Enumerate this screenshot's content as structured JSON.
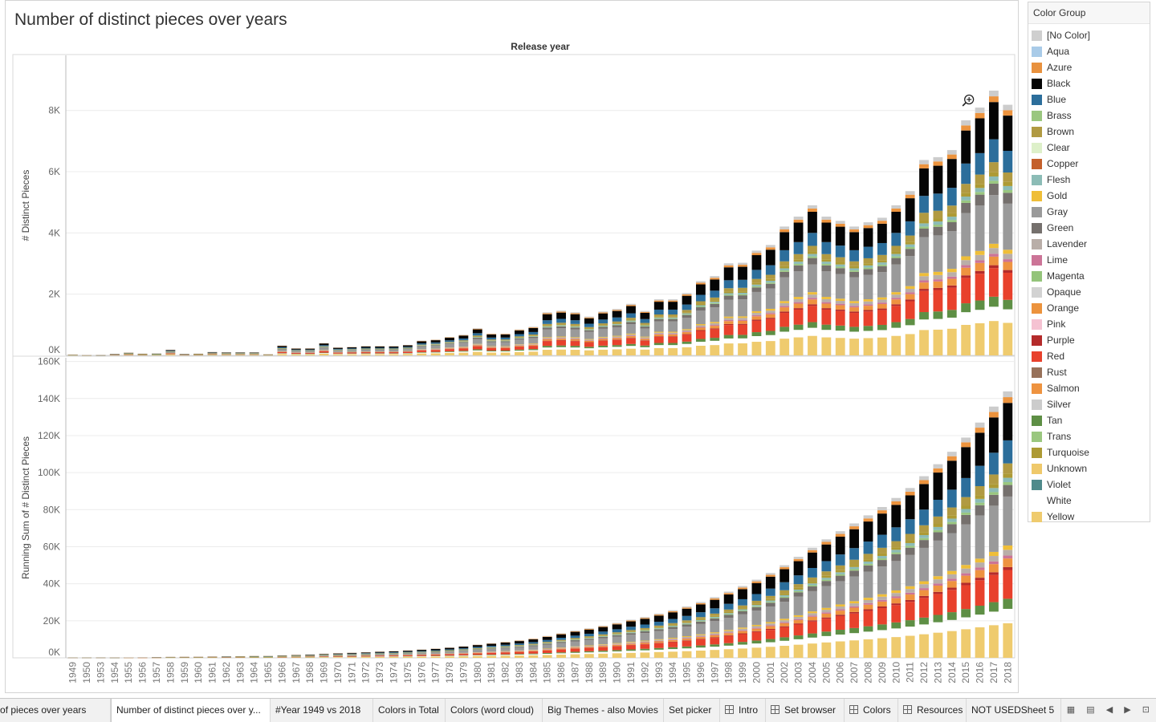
{
  "title": "Number of distinct pieces over years",
  "chart_data": {
    "type": "bar",
    "stacked": true,
    "column_header": "Release year",
    "years": [
      "1949",
      "1950",
      "1953",
      "1954",
      "1955",
      "1956",
      "1957",
      "1958",
      "1959",
      "1960",
      "1961",
      "1962",
      "1963",
      "1964",
      "1965",
      "1966",
      "1967",
      "1968",
      "1969",
      "1970",
      "1971",
      "1972",
      "1973",
      "1974",
      "1975",
      "1976",
      "1977",
      "1978",
      "1979",
      "1980",
      "1981",
      "1982",
      "1983",
      "1984",
      "1985",
      "1986",
      "1987",
      "1988",
      "1989",
      "1990",
      "1991",
      "1992",
      "1993",
      "1994",
      "1995",
      "1996",
      "1997",
      "1998",
      "1999",
      "2000",
      "2001",
      "2002",
      "2003",
      "2004",
      "2005",
      "2006",
      "2007",
      "2008",
      "2009",
      "2010",
      "2011",
      "2012",
      "2013",
      "2014",
      "2015",
      "2016",
      "2017",
      "2018"
    ],
    "totals": [
      30,
      10,
      5,
      50,
      100,
      60,
      70,
      200,
      50,
      60,
      120,
      110,
      110,
      110,
      40,
      350,
      250,
      250,
      440,
      280,
      300,
      330,
      330,
      330,
      370,
      520,
      560,
      650,
      730,
      960,
      770,
      770,
      920,
      1010,
      1520,
      1580,
      1520,
      1370,
      1550,
      1640,
      1820,
      1570,
      1980,
      1980,
      2200,
      2620,
      2800,
      3250,
      3270,
      3700,
      3900,
      4550,
      4900,
      5300,
      4900,
      4750,
      4550,
      4700,
      4860,
      5300,
      5800,
      6900,
      7000,
      7250,
      8300,
      8750,
      9350,
      8850
    ],
    "running_totals": [
      30,
      40,
      45,
      95,
      195,
      255,
      325,
      525,
      575,
      635,
      755,
      865,
      975,
      1085,
      1125,
      1475,
      1725,
      1975,
      2415,
      2695,
      2995,
      3325,
      3655,
      3985,
      4355,
      4875,
      5435,
      6085,
      6815,
      7775,
      8545,
      9315,
      10235,
      11245,
      12765,
      14345,
      15865,
      17235,
      18785,
      20425,
      22245,
      23815,
      25795,
      27775,
      29975,
      32595,
      35395,
      38645,
      41915,
      45615,
      49515,
      54065,
      58965,
      64265,
      69165,
      73915,
      78465,
      83165,
      88025,
      93325,
      99125,
      106025,
      113025,
      120275,
      128575,
      137325,
      146675,
      155525
    ],
    "panels": [
      {
        "measure": "# Distinct Pieces",
        "ylim": [
          0,
          9800
        ],
        "ticks": [
          {
            "v": 0,
            "label": "0K"
          },
          {
            "v": 2000,
            "label": "2K"
          },
          {
            "v": 4000,
            "label": "4K"
          },
          {
            "v": 6000,
            "label": "6K"
          },
          {
            "v": 8000,
            "label": "8K"
          }
        ]
      },
      {
        "measure": "Running Sum of # Distinct Pieces",
        "ylim": [
          0,
          162000
        ],
        "ticks": [
          {
            "v": 0,
            "label": "0K"
          },
          {
            "v": 20000,
            "label": "20K"
          },
          {
            "v": 40000,
            "label": "40K"
          },
          {
            "v": 60000,
            "label": "60K"
          },
          {
            "v": 80000,
            "label": "80K"
          },
          {
            "v": 100000,
            "label": "100K"
          },
          {
            "v": 120000,
            "label": "120K"
          },
          {
            "v": 140000,
            "label": "140K"
          },
          {
            "v": 160000,
            "label": "160K"
          }
        ]
      }
    ],
    "stack_order_bottom_to_top": [
      "Yellow",
      "White",
      "Tan",
      "Red",
      "Purple",
      "Salmon",
      "Lime",
      "Lavender",
      "Gold",
      "Gray",
      "Green",
      "Trans",
      "Flesh",
      "Turquoise",
      "Brown",
      "Blue",
      "Black",
      "Orange",
      "Silver"
    ],
    "stack_fractions": [
      0.12,
      0.05,
      0.035,
      0.1,
      0.01,
      0.03,
      0.01,
      0.02,
      0.015,
      0.17,
      0.04,
      0.01,
      0.015,
      0.015,
      0.035,
      0.08,
      0.13,
      0.02,
      0.02
    ],
    "legend_title": "Color Group",
    "legend": [
      {
        "name": "[No Color]",
        "color": "#cfcfcf"
      },
      {
        "name": "Aqua",
        "color": "#a9cbe8"
      },
      {
        "name": "Azure",
        "color": "#e8913e"
      },
      {
        "name": "Black",
        "color": "#050505"
      },
      {
        "name": "Blue",
        "color": "#2c6e9b"
      },
      {
        "name": "Brass",
        "color": "#9ac77f"
      },
      {
        "name": "Brown",
        "color": "#b19a42"
      },
      {
        "name": "Clear",
        "color": "#ddf0c9"
      },
      {
        "name": "Copper",
        "color": "#c4602b"
      },
      {
        "name": "Flesh",
        "color": "#8cbcb6"
      },
      {
        "name": "Gold",
        "color": "#efbe38"
      },
      {
        "name": "Gray",
        "color": "#9a9a9a"
      },
      {
        "name": "Green",
        "color": "#75706d"
      },
      {
        "name": "Lavender",
        "color": "#b9aea8"
      },
      {
        "name": "Lime",
        "color": "#cc7497"
      },
      {
        "name": "Magenta",
        "color": "#94c47a"
      },
      {
        "name": "Opaque",
        "color": "#d2d2d2"
      },
      {
        "name": "Orange",
        "color": "#ec933d"
      },
      {
        "name": "Pink",
        "color": "#f5c2d2"
      },
      {
        "name": "Purple",
        "color": "#b42b2b"
      },
      {
        "name": "Red",
        "color": "#e8412c"
      },
      {
        "name": "Rust",
        "color": "#97715a"
      },
      {
        "name": "Salmon",
        "color": "#ee9340"
      },
      {
        "name": "Silver",
        "color": "#cccccc"
      },
      {
        "name": "Tan",
        "color": "#5e8f45"
      },
      {
        "name": "Trans",
        "color": "#9ac77f"
      },
      {
        "name": "Turquoise",
        "color": "#ad9a34"
      },
      {
        "name": "Unknown",
        "color": "#efc96b"
      },
      {
        "name": "Violet",
        "color": "#4f8a8b"
      },
      {
        "name": "White",
        "color": "#ffffff"
      },
      {
        "name": "Yellow",
        "color": "#efcb6e"
      }
    ]
  },
  "tabs": [
    {
      "label": "Number of pieces over years",
      "icon": false
    },
    {
      "label": "Number of distinct pieces over y...",
      "icon": false,
      "active": true
    },
    {
      "label": "#Year 1949 vs 2018",
      "icon": false
    },
    {
      "label": "Colors in Total",
      "icon": false
    },
    {
      "label": "Colors (word cloud)",
      "icon": false
    },
    {
      "label": "Big Themes - also Movies",
      "icon": false
    },
    {
      "label": "Set picker",
      "icon": false
    },
    {
      "label": "Intro",
      "icon": true
    },
    {
      "label": "Set browser",
      "icon": true
    },
    {
      "label": "Colors",
      "icon": true
    },
    {
      "label": "Resources",
      "icon": true
    },
    {
      "label": "NOT USEDSheet 5",
      "icon": false
    }
  ]
}
